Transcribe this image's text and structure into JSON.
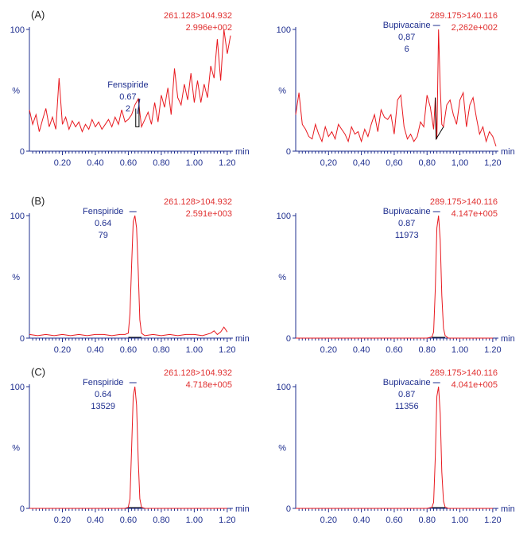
{
  "colors": {
    "trace": "#e8191f",
    "axis": "#1f2f8f",
    "info_text": "#e03030",
    "label_text": "#1f2f8f",
    "integration": "#000000"
  },
  "chart_data": [
    {
      "type": "line",
      "panel": "(A)",
      "x_unit": "min",
      "y_label": "%",
      "xticks": [
        "0.20",
        "0.40",
        "0.60",
        "0.80",
        "1.00",
        "1.20"
      ],
      "yticks": [
        "0",
        "100"
      ],
      "info": [
        "261.128>104.932",
        "2.996e+002"
      ],
      "peak": {
        "name": "Fenspiride",
        "rt": "0.67",
        "area": "2",
        "x": 0.67,
        "y": 43
      },
      "xlim": [
        0.0,
        1.22
      ],
      "ylim": [
        0,
        100
      ],
      "series": [
        {
          "x": [
            0.0,
            0.02,
            0.04,
            0.06,
            0.08,
            0.1,
            0.12,
            0.14,
            0.16,
            0.18,
            0.2,
            0.22,
            0.24,
            0.26,
            0.28,
            0.3,
            0.32,
            0.34,
            0.36,
            0.38,
            0.4,
            0.42,
            0.44,
            0.46,
            0.48,
            0.5,
            0.52,
            0.54,
            0.56,
            0.58,
            0.6,
            0.62,
            0.64,
            0.66,
            0.68,
            0.7,
            0.72,
            0.74,
            0.76,
            0.78,
            0.8,
            0.82,
            0.84,
            0.86,
            0.88,
            0.9,
            0.92,
            0.94,
            0.96,
            0.98,
            1.0,
            1.02,
            1.04,
            1.06,
            1.08,
            1.1,
            1.12,
            1.14,
            1.16,
            1.18,
            1.2,
            1.22
          ],
          "y": [
            34,
            22,
            30,
            16,
            26,
            35,
            20,
            28,
            18,
            60,
            22,
            28,
            18,
            25,
            20,
            24,
            16,
            22,
            18,
            26,
            20,
            24,
            18,
            22,
            26,
            20,
            28,
            22,
            34,
            24,
            26,
            30,
            38,
            43,
            20,
            26,
            32,
            22,
            40,
            24,
            46,
            36,
            52,
            30,
            68,
            44,
            38,
            55,
            42,
            64,
            40,
            58,
            40,
            55,
            44,
            70,
            60,
            92,
            58,
            100,
            80,
            95
          ]
        }
      ]
    },
    {
      "type": "line",
      "panel": "",
      "x_unit": "min",
      "y_label": "%",
      "xticks": [
        "0,20",
        "0,40",
        "0,60",
        "0,80",
        "1,00",
        "1,20"
      ],
      "yticks": [
        "0",
        "100"
      ],
      "info": [
        "289.175>140.116",
        "2,262e+002"
      ],
      "peak": {
        "name": "Bupivacaine",
        "rt": "0,87",
        "area": "6",
        "x": 0.87,
        "y": 100
      },
      "xlim": [
        0.0,
        1.22
      ],
      "ylim": [
        0,
        100
      ],
      "series": [
        {
          "x": [
            0.0,
            0.02,
            0.04,
            0.06,
            0.08,
            0.1,
            0.12,
            0.14,
            0.16,
            0.18,
            0.2,
            0.22,
            0.24,
            0.26,
            0.28,
            0.3,
            0.32,
            0.34,
            0.36,
            0.38,
            0.4,
            0.42,
            0.44,
            0.46,
            0.48,
            0.5,
            0.52,
            0.54,
            0.56,
            0.58,
            0.6,
            0.62,
            0.64,
            0.66,
            0.68,
            0.7,
            0.72,
            0.74,
            0.76,
            0.78,
            0.8,
            0.82,
            0.84,
            0.85,
            0.86,
            0.87,
            0.88,
            0.89,
            0.9,
            0.92,
            0.94,
            0.96,
            0.98,
            1.0,
            1.02,
            1.04,
            1.06,
            1.08,
            1.1,
            1.12,
            1.14,
            1.16,
            1.18,
            1.2,
            1.22
          ],
          "y": [
            30,
            48,
            22,
            18,
            12,
            10,
            22,
            14,
            8,
            20,
            12,
            16,
            10,
            22,
            18,
            14,
            8,
            20,
            14,
            16,
            8,
            18,
            12,
            22,
            30,
            16,
            34,
            28,
            26,
            30,
            14,
            42,
            46,
            20,
            10,
            14,
            8,
            12,
            24,
            20,
            46,
            36,
            18,
            44,
            10,
            100,
            52,
            22,
            20,
            38,
            42,
            30,
            22,
            42,
            48,
            20,
            38,
            44,
            28,
            14,
            20,
            8,
            16,
            12,
            4
          ]
        }
      ]
    },
    {
      "type": "line",
      "panel": "(B)",
      "x_unit": "min",
      "y_label": "%",
      "xticks": [
        "0.20",
        "0.40",
        "0.60",
        "0.80",
        "1.00",
        "1.20"
      ],
      "yticks": [
        "0",
        "100"
      ],
      "info": [
        "261.128>104.932",
        "2.591e+003"
      ],
      "peak": {
        "name": "Fenspiride",
        "rt": "0.64",
        "area": "79",
        "x": 0.64,
        "y": 100
      },
      "xlim": [
        0.0,
        1.22
      ],
      "ylim": [
        0,
        100
      ],
      "series": [
        {
          "x": [
            0.0,
            0.05,
            0.1,
            0.15,
            0.2,
            0.25,
            0.3,
            0.35,
            0.4,
            0.45,
            0.5,
            0.55,
            0.58,
            0.6,
            0.61,
            0.62,
            0.63,
            0.64,
            0.65,
            0.66,
            0.67,
            0.68,
            0.7,
            0.75,
            0.8,
            0.85,
            0.9,
            0.95,
            1.0,
            1.05,
            1.1,
            1.12,
            1.14,
            1.16,
            1.18,
            1.2
          ],
          "y": [
            3,
            2,
            3,
            2,
            3,
            2,
            3,
            2,
            3,
            3,
            2,
            3,
            3,
            4,
            20,
            60,
            95,
            100,
            90,
            55,
            15,
            4,
            2,
            3,
            2,
            3,
            2,
            3,
            3,
            2,
            4,
            6,
            3,
            5,
            9,
            5
          ]
        }
      ]
    },
    {
      "type": "line",
      "panel": "",
      "x_unit": "min",
      "y_label": "%",
      "xticks": [
        "0.20",
        "0.40",
        "0.60",
        "0.80",
        "1.00",
        "1.20"
      ],
      "yticks": [
        "0",
        "100"
      ],
      "info": [
        "289.175>140.116",
        "4.147e+005"
      ],
      "peak": {
        "name": "Bupivacaine",
        "rt": "0.87",
        "area": "11973",
        "x": 0.87,
        "y": 100
      },
      "xlim": [
        0.0,
        1.22
      ],
      "ylim": [
        0,
        100
      ],
      "series": [
        {
          "x": [
            0.0,
            0.2,
            0.4,
            0.6,
            0.8,
            0.83,
            0.84,
            0.85,
            0.86,
            0.87,
            0.88,
            0.89,
            0.9,
            0.91,
            0.93,
            1.0,
            1.2
          ],
          "y": [
            0,
            0,
            0,
            0,
            0,
            1,
            5,
            40,
            90,
            100,
            80,
            35,
            8,
            2,
            0,
            0,
            0
          ]
        }
      ]
    },
    {
      "type": "line",
      "panel": "(C)",
      "x_unit": "min",
      "y_label": "%",
      "xticks": [
        "0.20",
        "0.40",
        "0.60",
        "0.80",
        "1.00",
        "1.20"
      ],
      "yticks": [
        "0",
        "100"
      ],
      "info": [
        "261.128>104.932",
        "4.718e+005"
      ],
      "peak": {
        "name": "Fenspiride",
        "rt": "0.64",
        "area": "13529",
        "x": 0.64,
        "y": 100
      },
      "xlim": [
        0.0,
        1.22
      ],
      "ylim": [
        0,
        100
      ],
      "series": [
        {
          "x": [
            0.0,
            0.2,
            0.4,
            0.58,
            0.6,
            0.61,
            0.62,
            0.63,
            0.64,
            0.65,
            0.66,
            0.67,
            0.68,
            0.7,
            0.8,
            1.0,
            1.2
          ],
          "y": [
            0,
            0,
            0,
            0,
            1,
            8,
            50,
            92,
            100,
            85,
            40,
            8,
            1,
            0,
            0,
            0,
            0
          ]
        }
      ]
    },
    {
      "type": "line",
      "panel": "",
      "x_unit": "min",
      "y_label": "%",
      "xticks": [
        "0.20",
        "0.40",
        "0.60",
        "0.80",
        "1.00",
        "1.20"
      ],
      "yticks": [
        "0",
        "100"
      ],
      "info": [
        "289.175>140.116",
        "4.041e+005"
      ],
      "peak": {
        "name": "Bupivacaine",
        "rt": "0.87",
        "area": "11356",
        "x": 0.87,
        "y": 100
      },
      "xlim": [
        0.0,
        1.22
      ],
      "ylim": [
        0,
        100
      ],
      "series": [
        {
          "x": [
            0.0,
            0.2,
            0.4,
            0.6,
            0.8,
            0.83,
            0.84,
            0.85,
            0.86,
            0.87,
            0.88,
            0.89,
            0.9,
            0.91,
            0.93,
            1.0,
            1.2
          ],
          "y": [
            0,
            0,
            0,
            0,
            0,
            1,
            5,
            42,
            92,
            100,
            78,
            30,
            6,
            1,
            0,
            0,
            0
          ]
        }
      ]
    }
  ]
}
